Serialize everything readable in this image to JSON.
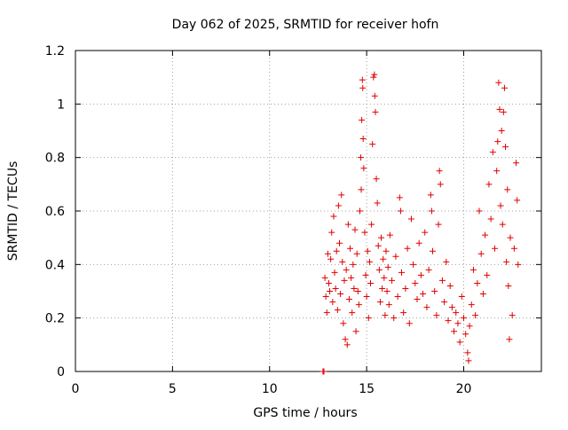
{
  "chart_data": {
    "type": "scatter",
    "title": "Day 062 of 2025, SRMTID for receiver hofn",
    "xlabel": "GPS time / hours",
    "ylabel": "SRMTID / TECUs",
    "xlim": [
      0,
      24
    ],
    "ylim": [
      0,
      1.2
    ],
    "x_ticks": [
      0,
      5,
      10,
      15,
      20
    ],
    "x_tick_labels": [
      "0",
      "5",
      "10",
      "15",
      "20"
    ],
    "y_ticks": [
      0,
      0.2,
      0.4,
      0.6,
      0.8,
      1.0,
      1.2
    ],
    "y_tick_labels": [
      "0",
      "0.2",
      "0.4",
      "0.6",
      "0.8",
      "1",
      "1.2"
    ],
    "grid": true,
    "marker": "plus",
    "color": "#e00000",
    "series": [
      {
        "name": "SRMTID",
        "points": [
          [
            12.75,
            0.0
          ],
          [
            12.8,
            0.0
          ],
          [
            12.85,
            0.35
          ],
          [
            12.9,
            0.28
          ],
          [
            12.95,
            0.22
          ],
          [
            13.0,
            0.44
          ],
          [
            13.05,
            0.33
          ],
          [
            13.1,
            0.3
          ],
          [
            13.15,
            0.42
          ],
          [
            13.2,
            0.52
          ],
          [
            13.25,
            0.26
          ],
          [
            13.3,
            0.58
          ],
          [
            13.35,
            0.37
          ],
          [
            13.4,
            0.31
          ],
          [
            13.45,
            0.45
          ],
          [
            13.5,
            0.23
          ],
          [
            13.55,
            0.62
          ],
          [
            13.6,
            0.48
          ],
          [
            13.65,
            0.29
          ],
          [
            13.7,
            0.66
          ],
          [
            13.75,
            0.41
          ],
          [
            13.8,
            0.18
          ],
          [
            13.85,
            0.34
          ],
          [
            13.9,
            0.12
          ],
          [
            13.95,
            0.38
          ],
          [
            14.0,
            0.1
          ],
          [
            14.05,
            0.55
          ],
          [
            14.1,
            0.27
          ],
          [
            14.15,
            0.46
          ],
          [
            14.2,
            0.35
          ],
          [
            14.25,
            0.22
          ],
          [
            14.3,
            0.4
          ],
          [
            14.35,
            0.31
          ],
          [
            14.4,
            0.53
          ],
          [
            14.45,
            0.15
          ],
          [
            14.5,
            0.44
          ],
          [
            14.55,
            0.3
          ],
          [
            14.6,
            0.25
          ],
          [
            14.65,
            0.6
          ],
          [
            14.7,
            0.8
          ],
          [
            14.72,
            0.68
          ],
          [
            14.75,
            0.94
          ],
          [
            14.78,
            1.09
          ],
          [
            14.8,
            1.06
          ],
          [
            14.82,
            0.87
          ],
          [
            14.85,
            0.76
          ],
          [
            14.9,
            0.52
          ],
          [
            14.95,
            0.36
          ],
          [
            15.0,
            0.28
          ],
          [
            15.05,
            0.45
          ],
          [
            15.1,
            0.2
          ],
          [
            15.15,
            0.41
          ],
          [
            15.2,
            0.33
          ],
          [
            15.25,
            0.55
          ],
          [
            15.3,
            0.85
          ],
          [
            15.35,
            1.1
          ],
          [
            15.4,
            1.11
          ],
          [
            15.42,
            1.03
          ],
          [
            15.45,
            0.97
          ],
          [
            15.5,
            0.72
          ],
          [
            15.55,
            0.63
          ],
          [
            15.6,
            0.47
          ],
          [
            15.65,
            0.38
          ],
          [
            15.7,
            0.26
          ],
          [
            15.75,
            0.5
          ],
          [
            15.8,
            0.31
          ],
          [
            15.85,
            0.42
          ],
          [
            15.9,
            0.35
          ],
          [
            15.95,
            0.21
          ],
          [
            16.0,
            0.45
          ],
          [
            16.05,
            0.3
          ],
          [
            16.1,
            0.39
          ],
          [
            16.15,
            0.25
          ],
          [
            16.2,
            0.51
          ],
          [
            16.3,
            0.34
          ],
          [
            16.4,
            0.2
          ],
          [
            16.5,
            0.43
          ],
          [
            16.6,
            0.28
          ],
          [
            16.7,
            0.65
          ],
          [
            16.75,
            0.6
          ],
          [
            16.8,
            0.37
          ],
          [
            16.9,
            0.22
          ],
          [
            17.0,
            0.31
          ],
          [
            17.1,
            0.46
          ],
          [
            17.2,
            0.18
          ],
          [
            17.3,
            0.57
          ],
          [
            17.4,
            0.4
          ],
          [
            17.5,
            0.33
          ],
          [
            17.6,
            0.27
          ],
          [
            17.7,
            0.48
          ],
          [
            17.8,
            0.36
          ],
          [
            17.9,
            0.29
          ],
          [
            18.0,
            0.52
          ],
          [
            18.1,
            0.24
          ],
          [
            18.2,
            0.38
          ],
          [
            18.3,
            0.66
          ],
          [
            18.35,
            0.6
          ],
          [
            18.4,
            0.45
          ],
          [
            18.5,
            0.3
          ],
          [
            18.6,
            0.21
          ],
          [
            18.7,
            0.55
          ],
          [
            18.75,
            0.75
          ],
          [
            18.8,
            0.7
          ],
          [
            18.9,
            0.34
          ],
          [
            19.0,
            0.26
          ],
          [
            19.1,
            0.41
          ],
          [
            19.2,
            0.19
          ],
          [
            19.3,
            0.32
          ],
          [
            19.4,
            0.24
          ],
          [
            19.5,
            0.15
          ],
          [
            19.6,
            0.22
          ],
          [
            19.7,
            0.18
          ],
          [
            19.8,
            0.11
          ],
          [
            19.9,
            0.28
          ],
          [
            20.0,
            0.2
          ],
          [
            20.1,
            0.14
          ],
          [
            20.2,
            0.07
          ],
          [
            20.25,
            0.04
          ],
          [
            20.3,
            0.17
          ],
          [
            20.4,
            0.25
          ],
          [
            20.5,
            0.38
          ],
          [
            20.6,
            0.21
          ],
          [
            20.7,
            0.33
          ],
          [
            20.8,
            0.6
          ],
          [
            20.9,
            0.44
          ],
          [
            21.0,
            0.29
          ],
          [
            21.1,
            0.51
          ],
          [
            21.2,
            0.36
          ],
          [
            21.3,
            0.7
          ],
          [
            21.4,
            0.57
          ],
          [
            21.5,
            0.82
          ],
          [
            21.6,
            0.46
          ],
          [
            21.7,
            0.75
          ],
          [
            21.75,
            0.86
          ],
          [
            21.8,
            1.08
          ],
          [
            21.85,
            0.98
          ],
          [
            21.9,
            0.62
          ],
          [
            21.95,
            0.9
          ],
          [
            22.0,
            0.55
          ],
          [
            22.05,
            0.97
          ],
          [
            22.1,
            1.06
          ],
          [
            22.15,
            0.84
          ],
          [
            22.2,
            0.41
          ],
          [
            22.25,
            0.68
          ],
          [
            22.3,
            0.32
          ],
          [
            22.35,
            0.12
          ],
          [
            22.4,
            0.5
          ],
          [
            22.5,
            0.21
          ],
          [
            22.6,
            0.46
          ],
          [
            22.7,
            0.78
          ],
          [
            22.75,
            0.64
          ],
          [
            22.8,
            0.4
          ]
        ]
      }
    ]
  }
}
